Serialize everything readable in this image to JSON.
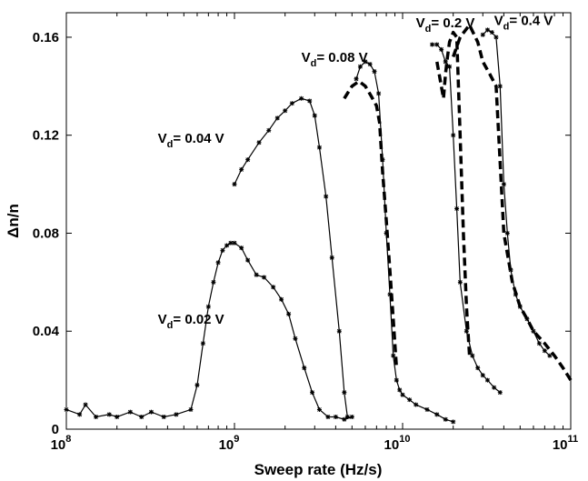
{
  "chart_data": {
    "type": "line",
    "title": "",
    "xlabel": "Sweep rate (Hz/s)",
    "ylabel": "Δn/n",
    "xscale": "log",
    "xlim": [
      100000000,
      100000000000
    ],
    "ylim": [
      0,
      0.17
    ],
    "x_ticks": [
      {
        "value": 100000000,
        "base": "10",
        "exp": "8"
      },
      {
        "value": 1000000000,
        "base": "10",
        "exp": "9"
      },
      {
        "value": 10000000000,
        "base": "10",
        "exp": "10"
      },
      {
        "value": 100000000000,
        "base": "10",
        "exp": "11"
      }
    ],
    "y_ticks": [
      {
        "value": 0,
        "label": "0"
      },
      {
        "value": 0.04,
        "label": "0.04"
      },
      {
        "value": 0.08,
        "label": "0.08"
      },
      {
        "value": 0.12,
        "label": "0.12"
      },
      {
        "value": 0.16,
        "label": "0.16"
      }
    ],
    "grid": false,
    "legend": "none",
    "series": [
      {
        "style": "solid",
        "x": [
          100000000.0,
          120000000.0,
          130000000.0,
          150000000.0,
          180000000.0,
          200000000.0,
          240000000.0,
          280000000.0,
          320000000.0,
          380000000.0,
          450000000.0,
          550000000.0,
          600000000.0,
          650000000.0,
          700000000.0,
          750000000.0,
          800000000.0,
          850000000.0,
          900000000.0,
          950000000.0,
          1000000000.0,
          1100000000.0,
          1200000000.0,
          1350000000.0,
          1500000000.0,
          1700000000.0,
          1900000000.0,
          2100000000.0,
          2300000000.0,
          2600000000.0,
          2900000000.0,
          3200000000.0,
          3600000000.0,
          4000000000.0,
          4500000000.0,
          5000000000.0
        ],
        "y": [
          0.008,
          0.006,
          0.01,
          0.005,
          0.006,
          0.005,
          0.007,
          0.005,
          0.007,
          0.005,
          0.006,
          0.008,
          0.018,
          0.035,
          0.05,
          0.06,
          0.068,
          0.073,
          0.075,
          0.076,
          0.076,
          0.074,
          0.069,
          0.063,
          0.062,
          0.058,
          0.053,
          0.047,
          0.037,
          0.025,
          0.015,
          0.008,
          0.005,
          0.005,
          0.004,
          0.005
        ]
      },
      {
        "style": "solid",
        "x": [
          1000000000.0,
          1100000000.0,
          1200000000.0,
          1400000000.0,
          1600000000.0,
          1800000000.0,
          2000000000.0,
          2200000000.0,
          2500000000.0,
          2800000000.0,
          3000000000.0,
          3200000000.0,
          3500000000.0,
          3800000000.0,
          4200000000.0,
          4500000000.0,
          4700000000.0
        ],
        "y": [
          0.1,
          0.106,
          0.11,
          0.117,
          0.122,
          0.127,
          0.13,
          0.133,
          0.135,
          0.134,
          0.128,
          0.115,
          0.095,
          0.07,
          0.04,
          0.015,
          0.005
        ],
        "label": "V_d= 0.04 V"
      },
      {
        "style": "solid",
        "x": [
          5300000000.0,
          5600000000.0,
          6000000000.0,
          6400000000.0,
          6800000000.0,
          7200000000.0,
          7600000000.0,
          8000000000.0,
          8400000000.0,
          8800000000.0,
          9200000000.0,
          9600000000.0,
          10000000000.0,
          11000000000.0,
          12000000000.0,
          14000000000.0,
          16000000000.0,
          18000000000.0,
          20000000000.0
        ],
        "y": [
          0.143,
          0.148,
          0.15,
          0.149,
          0.146,
          0.137,
          0.11,
          0.08,
          0.055,
          0.03,
          0.02,
          0.016,
          0.014,
          0.012,
          0.01,
          0.008,
          0.006,
          0.004,
          0.003
        ],
        "label": "V_d= 0.08 V"
      },
      {
        "style": "dashed",
        "x": [
          4500000000.0,
          5000000000.0,
          5500000000.0,
          6000000000.0,
          6500000000.0,
          7000000000.0,
          7300000000.0,
          7600000000.0,
          8000000000.0,
          8400000000.0,
          8800000000.0,
          9200000000.0
        ],
        "y": [
          0.135,
          0.14,
          0.142,
          0.14,
          0.136,
          0.132,
          0.125,
          0.105,
          0.085,
          0.065,
          0.045,
          0.025
        ]
      },
      {
        "style": "solid",
        "x": [
          15000000000.0,
          16000000000.0,
          17000000000.0,
          18000000000.0,
          19000000000.0,
          20000000000.0,
          21000000000.0,
          22000000000.0,
          24000000000.0,
          26000000000.0,
          28000000000.0,
          30000000000.0,
          32000000000.0,
          35000000000.0,
          38000000000.0
        ],
        "y": [
          0.157,
          0.157,
          0.155,
          0.15,
          0.148,
          0.12,
          0.09,
          0.06,
          0.04,
          0.03,
          0.025,
          0.022,
          0.02,
          0.017,
          0.015
        ],
        "label": "V_d= 0.2 V"
      },
      {
        "style": "dashed",
        "x": [
          16000000000.0,
          17000000000.0,
          17500000000.0,
          18000000000.0,
          18500000000.0,
          19000000000.0,
          20000000000.0,
          21000000000.0,
          22000000000.0,
          23000000000.0,
          24000000000.0,
          25000000000.0
        ],
        "y": [
          0.15,
          0.14,
          0.135,
          0.145,
          0.152,
          0.158,
          0.162,
          0.16,
          0.12,
          0.08,
          0.05,
          0.03
        ]
      },
      {
        "style": "solid",
        "x": [
          30000000000.0,
          32000000000.0,
          34000000000.0,
          36000000000.0,
          38000000000.0,
          40000000000.0,
          42000000000.0,
          44000000000.0,
          47000000000.0,
          50000000000.0,
          55000000000.0,
          60000000000.0,
          65000000000.0,
          70000000000.0,
          75000000000.0
        ],
        "y": [
          0.161,
          0.163,
          0.162,
          0.16,
          0.14,
          0.1,
          0.08,
          0.065,
          0.055,
          0.05,
          0.045,
          0.04,
          0.035,
          0.032,
          0.03
        ],
        "label": "V_d= 0.4 V"
      },
      {
        "style": "dashed",
        "x": [
          20000000000.0,
          22000000000.0,
          25000000000.0,
          28000000000.0,
          30000000000.0,
          33000000000.0,
          36000000000.0,
          40000000000.0,
          45000000000.0,
          50000000000.0,
          55000000000.0,
          60000000000.0,
          70000000000.0,
          80000000000.0,
          90000000000.0,
          100000000000.0
        ],
        "y": [
          0.152,
          0.16,
          0.165,
          0.158,
          0.15,
          0.145,
          0.14,
          0.08,
          0.06,
          0.05,
          0.045,
          0.04,
          0.035,
          0.03,
          0.025,
          0.02
        ]
      }
    ],
    "annotations": [
      {
        "text_main": "V",
        "text_sub": "d",
        "text_rest": "= 0.02 V",
        "x": 350000000.0,
        "y": 0.043
      },
      {
        "text_main": "V",
        "text_sub": "d",
        "text_rest": "= 0.04 V",
        "x": 350000000.0,
        "y": 0.117
      },
      {
        "text_main": "V",
        "text_sub": "d",
        "text_rest": "= 0.08 V",
        "x": 2500000000.0,
        "y": 0.15
      },
      {
        "text_main": "V",
        "text_sub": "d",
        "text_rest": "= 0.2 V",
        "x": 12000000000.0,
        "y": 0.164
      },
      {
        "text_main": "V",
        "text_sub": "d",
        "text_rest": "= 0.4 V",
        "x": 35000000000.0,
        "y": 0.165
      }
    ]
  }
}
